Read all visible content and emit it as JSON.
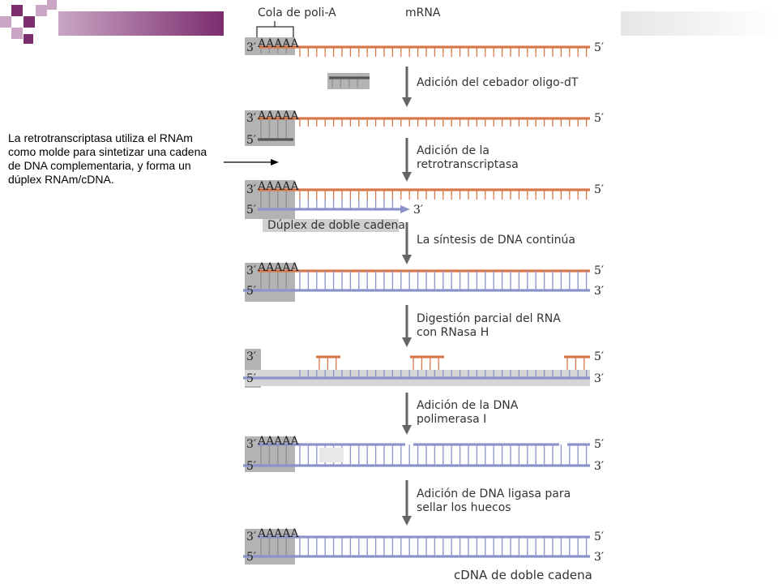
{
  "caption": "La retrotranscriptasa utiliza el RNAm como molde para sintetizar una cadena de DNA complementaria, y forma un dúplex RNAm/cDNA.",
  "top": {
    "polyA_label": "Cola de poli-A",
    "mrna_label": "mRNA"
  },
  "polyA": "AAAAA",
  "steps": [
    "Adición del cebador oligo-dT",
    [
      "Adición de la",
      "retrotranscriptasa"
    ],
    "La síntesis de DNA continúa",
    [
      "Digestión parcial del RNA",
      "con RNasa H"
    ],
    [
      "Adición de la DNA",
      "polimerasa I"
    ],
    [
      "Adición de DNA ligasa para",
      "sellar los huecos"
    ]
  ],
  "annotations": {
    "duplex": "Dúplex de doble cadena",
    "final": "cDNA de doble cadena"
  },
  "ends": {
    "three": "3′",
    "five": "5′"
  },
  "colors": {
    "rna": "#d9774a",
    "dna": "#8c93c8",
    "gray": "#b3b3b3",
    "dark": "#8f8f8f",
    "arrow": "#666666",
    "accent": "#7b2d6e",
    "accent_light": "#c9a6c4"
  }
}
